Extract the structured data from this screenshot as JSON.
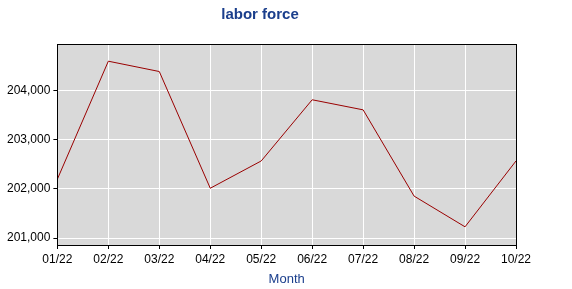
{
  "chart_data": {
    "type": "line",
    "title": "labor force",
    "x_label": "Month",
    "categories": [
      "01/22",
      "02/22",
      "03/22",
      "04/22",
      "05/22",
      "06/22",
      "07/22",
      "08/22",
      "09/22",
      "10/22"
    ],
    "values": [
      202200,
      204600,
      204390,
      202015,
      202570,
      203815,
      203610,
      201855,
      201230,
      202570
    ],
    "color": "#990000",
    "ylim": [
      200860,
      204950
    ],
    "yticks": [
      {
        "value": 201000,
        "label": "201,000"
      },
      {
        "value": 202000,
        "label": "202,000"
      },
      {
        "value": 203000,
        "label": "203,000"
      },
      {
        "value": 204000,
        "label": "204,000"
      }
    ],
    "grid": true
  }
}
